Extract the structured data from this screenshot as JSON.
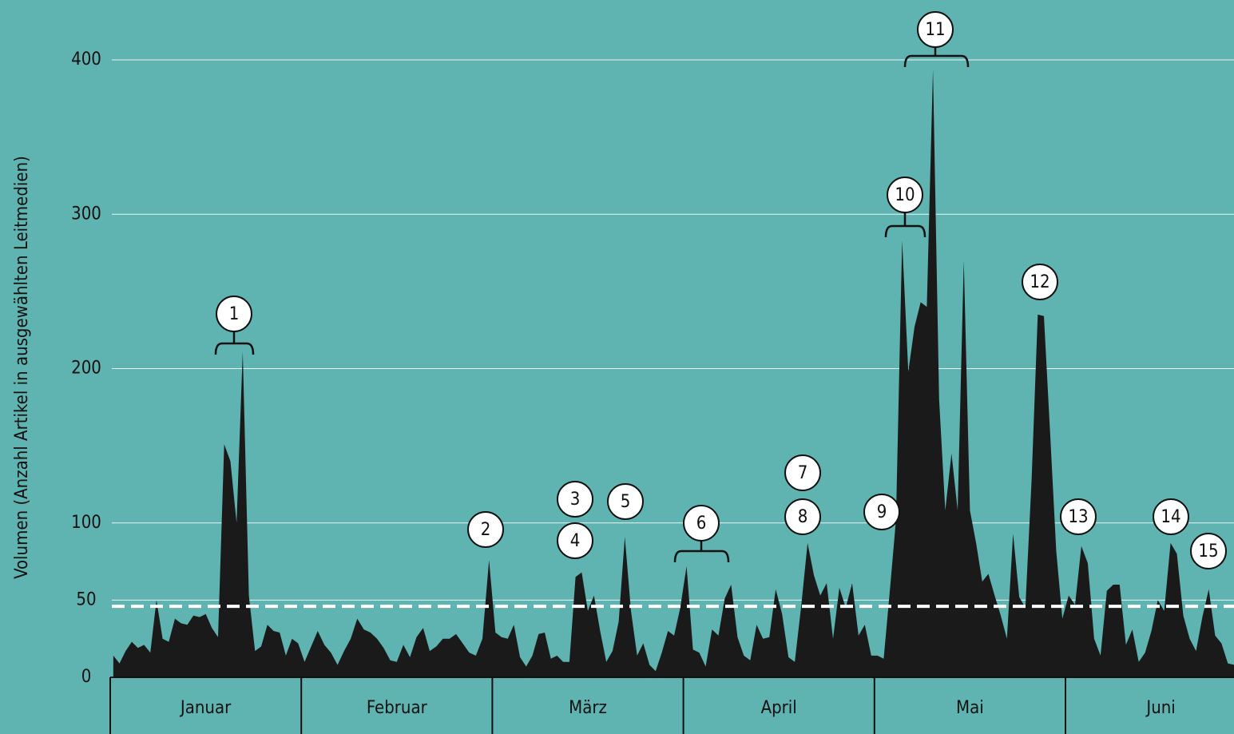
{
  "chart_data": {
    "type": "area",
    "y_label": "Volumen (Anzahl Artikel in ausgewählten Leitmedien)",
    "categories": [
      "Januar",
      "Februar",
      "März",
      "April",
      "Mai",
      "Juni"
    ],
    "values": [
      [
        14,
        9,
        17,
        23,
        19,
        21,
        16,
        50,
        25,
        23,
        38,
        35,
        34,
        40,
        39,
        41,
        32,
        26,
        151,
        140,
        100,
        211,
        53,
        17,
        20,
        34,
        30,
        29,
        14,
        25,
        22
      ],
      [
        10,
        20,
        30,
        21,
        16,
        8,
        17,
        25,
        38,
        31,
        29,
        25,
        19,
        11,
        10,
        21,
        13,
        26,
        32,
        17,
        20,
        25,
        25,
        28,
        22,
        16,
        14,
        25,
        76
      ],
      [
        29,
        26,
        25,
        34,
        13,
        7,
        14,
        28,
        29,
        12,
        14,
        10,
        10,
        65,
        68,
        43,
        53,
        30,
        10,
        17,
        36,
        91,
        43,
        14,
        22,
        8,
        4,
        16,
        30,
        27,
        45
      ],
      [
        72,
        18,
        16,
        7,
        31,
        27,
        51,
        60,
        26,
        14,
        11,
        34,
        25,
        26,
        57,
        41,
        13,
        10,
        46,
        87,
        66,
        53,
        61,
        25,
        58,
        45,
        61,
        27,
        34,
        14
      ],
      [
        14,
        12,
        56,
        102,
        283,
        198,
        227,
        243,
        240,
        394,
        180,
        108,
        145,
        108,
        270,
        108,
        87,
        62,
        67,
        53,
        40,
        25,
        93,
        52,
        45,
        128,
        235,
        234,
        159,
        82,
        38
      ],
      [
        53,
        47,
        85,
        74,
        25,
        14,
        56,
        60,
        60,
        21,
        31,
        10,
        16,
        30,
        50,
        43,
        87,
        80,
        40,
        25,
        17,
        39,
        57,
        27,
        22,
        9,
        8,
        20,
        25,
        30
      ]
    ],
    "color": "#1a1a1a",
    "ylim": [
      0,
      400
    ],
    "yticks": [
      0,
      50,
      100,
      200,
      300,
      400
    ],
    "threshold": 46,
    "grid": true,
    "annotations": [
      "1",
      "2",
      "3",
      "4",
      "5",
      "6",
      "7",
      "8",
      "9",
      "10",
      "11",
      "12",
      "13",
      "14",
      "15"
    ]
  }
}
